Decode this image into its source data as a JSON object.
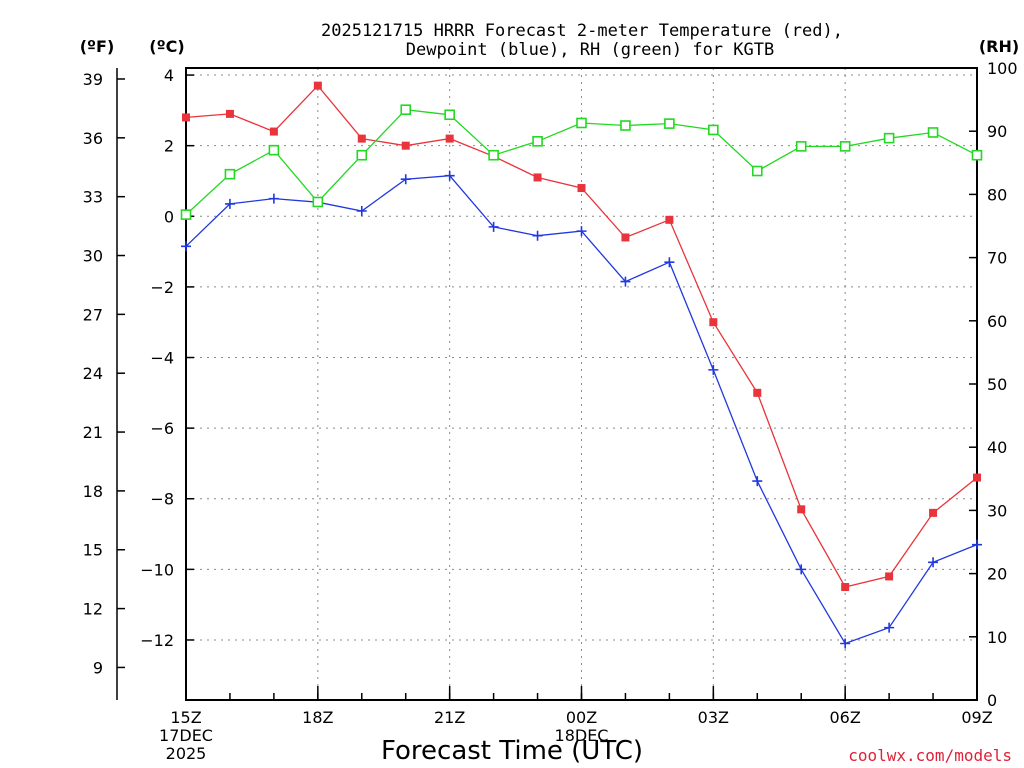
{
  "chart_data": {
    "type": "line",
    "title_line1": "2025121715 HRRR Forecast 2-meter Temperature (red),",
    "title_line2": "Dewpoint (blue), RH (green) for KGTB",
    "xlabel": "Forecast Time (UTC)",
    "credit": "coolwx.com/models",
    "credit_color": "#e0203a",
    "unit_f": "(ºF)",
    "unit_c": "(ºC)",
    "unit_rh": "(RH)",
    "x_hours": [
      15,
      16,
      17,
      18,
      19,
      20,
      21,
      22,
      23,
      24,
      25,
      26,
      27,
      28,
      29,
      30,
      31,
      32,
      33
    ],
    "x_ticks": [
      {
        "hour": 15,
        "label": "15Z",
        "date1": "17DEC",
        "date2": "2025"
      },
      {
        "hour": 18,
        "label": "18Z"
      },
      {
        "hour": 21,
        "label": "21Z"
      },
      {
        "hour": 24,
        "label": "00Z",
        "date1": "18DEC"
      },
      {
        "hour": 27,
        "label": "03Z"
      },
      {
        "hour": 30,
        "label": "06Z"
      },
      {
        "hour": 33,
        "label": "09Z"
      }
    ],
    "c_range": [
      -13.7,
      4.2
    ],
    "c_ticks": [
      4,
      2,
      0,
      -2,
      -4,
      -6,
      -8,
      -10,
      -12
    ],
    "f_ticks": [
      39,
      36,
      33,
      30,
      27,
      24,
      21,
      18,
      15,
      12,
      9
    ],
    "rh_range": [
      0,
      100
    ],
    "rh_ticks": [
      100,
      90,
      80,
      70,
      60,
      50,
      40,
      30,
      20,
      10,
      0
    ],
    "series": [
      {
        "name": "Temperature",
        "unit": "C",
        "color": "#e8343a",
        "marker": "filled-square",
        "values": [
          2.8,
          2.9,
          2.4,
          3.7,
          2.2,
          2.0,
          2.2,
          1.7,
          1.1,
          0.8,
          -0.6,
          -0.1,
          -3.0,
          -5.0,
          -8.3,
          -10.5,
          -10.2,
          -8.4,
          -7.4
        ]
      },
      {
        "name": "Dewpoint",
        "unit": "C",
        "color": "#2038e0",
        "marker": "plus",
        "values": [
          -0.85,
          0.35,
          0.5,
          0.4,
          0.15,
          1.05,
          1.15,
          -0.3,
          -0.55,
          -0.42,
          -1.85,
          -1.3,
          -4.35,
          -7.5,
          -10.0,
          -12.1,
          -11.65,
          -9.8,
          -9.3
        ]
      },
      {
        "name": "RH",
        "unit": "%",
        "color": "#22d822",
        "marker": "open-square",
        "values": [
          76.8,
          83.2,
          87.0,
          78.8,
          86.2,
          93.4,
          92.6,
          86.2,
          88.4,
          91.3,
          90.9,
          91.2,
          90.2,
          83.7,
          87.6,
          87.6,
          88.9,
          89.8,
          86.2
        ]
      }
    ]
  }
}
